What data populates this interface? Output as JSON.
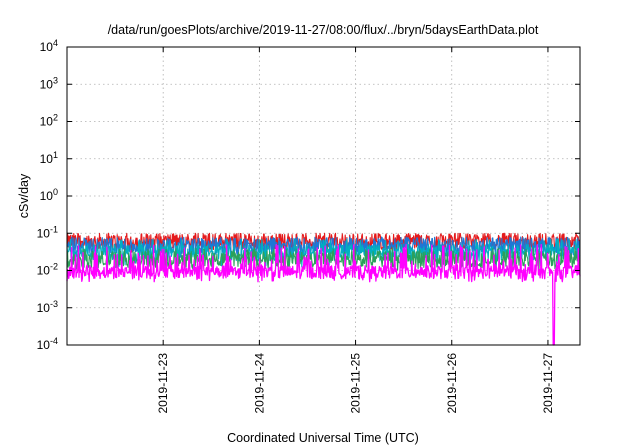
{
  "chart_data": {
    "type": "line",
    "title": "/data/run/goesPlots/archive/2019-11-27/08:00/flux/../bryn/5daysEarthData.plot",
    "xlabel": "Coordinated Universal Time (UTC)",
    "ylabel": "cSv/day",
    "yscale": "log",
    "ylim": [
      0.0001,
      10000
    ],
    "xlim": [
      "2019-11-22T00:00",
      "2019-11-27T08:00"
    ],
    "grid": true,
    "legend": "none",
    "yticks": [
      {
        "value": 0.0001,
        "base": "10",
        "exp": "-4"
      },
      {
        "value": 0.001,
        "base": "10",
        "exp": "-3"
      },
      {
        "value": 0.01,
        "base": "10",
        "exp": "-2"
      },
      {
        "value": 0.1,
        "base": "10",
        "exp": "-1"
      },
      {
        "value": 1,
        "base": "10",
        "exp": "0"
      },
      {
        "value": 10,
        "base": "10",
        "exp": "1"
      },
      {
        "value": 100,
        "base": "10",
        "exp": "2"
      },
      {
        "value": 1000,
        "base": "10",
        "exp": "3"
      },
      {
        "value": 10000,
        "base": "10",
        "exp": "4"
      }
    ],
    "xticks": [
      "2019-11-23",
      "2019-11-24",
      "2019-11-25",
      "2019-11-26",
      "2019-11-27"
    ],
    "series": [
      {
        "color": "#e41a1c",
        "typical_value": 0.06,
        "min": 0.03,
        "max": 0.1
      },
      {
        "color": "#1f77d4",
        "typical_value": 0.045,
        "min": 0.02,
        "max": 0.08
      },
      {
        "color": "#00b0c0",
        "typical_value": 0.03,
        "min": 0.012,
        "max": 0.07
      },
      {
        "color": "#2ca05a",
        "typical_value": 0.02,
        "min": 0.01,
        "max": 0.04
      },
      {
        "color": "#ff00ff",
        "typical_value": 0.009,
        "min": 0.005,
        "max": 0.05,
        "dropout": {
          "date": "2019-11-27",
          "to": 0.0001
        }
      }
    ]
  }
}
